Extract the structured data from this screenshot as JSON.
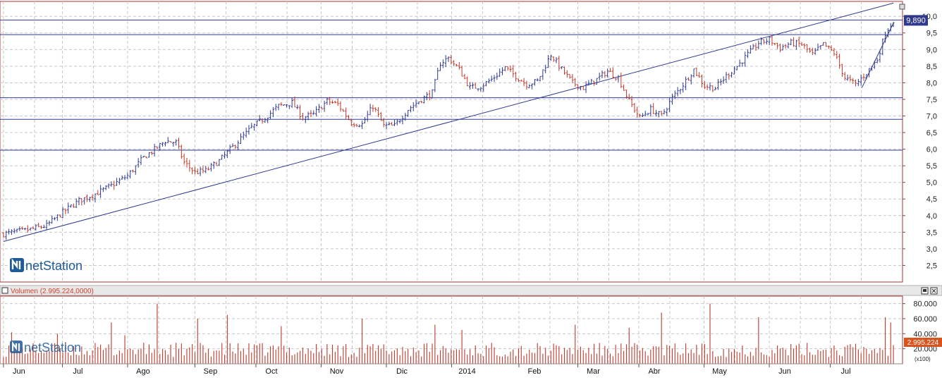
{
  "brand": {
    "name": "netStation"
  },
  "colors": {
    "up": "#2f3a8f",
    "down": "#c0392b",
    "volume": "#c0392b",
    "trendline": "#2f3a8f",
    "support": "#2f3a8f",
    "grid": "#c8c8c8",
    "last_price_bg": "#2f3a8f",
    "last_volume_bg": "#d9531e"
  },
  "chart_data": [
    {
      "type": "candlestick",
      "y_ticks": [
        "2,5",
        "3,0",
        "3,5",
        "4,0",
        "4,5",
        "5,0",
        "5,5",
        "6,0",
        "6,5",
        "7,0",
        "7,5",
        "8,0",
        "8,5",
        "9,0",
        "9,5",
        "10,0"
      ],
      "ylim": [
        2.0,
        10.45
      ],
      "last_value_label": "9,890",
      "last_value": 9.89,
      "support_levels": [
        9.89,
        9.45,
        7.55,
        6.9,
        5.97
      ],
      "trendlines": [
        {
          "from": [
            "2013-06-03",
            3.22
          ],
          "to": [
            "2014-07-31",
            10.4
          ]
        },
        {
          "from": [
            "2014-07-16",
            7.85
          ],
          "to": [
            "2014-07-31",
            9.8
          ]
        }
      ],
      "x_months": [
        "Jun",
        "Jul",
        "Ago",
        "Sep",
        "Oct",
        "Nov",
        "Dic",
        "2014",
        "Feb",
        "Mar",
        "Abr",
        "May",
        "Jun",
        "Jul"
      ],
      "price_path": [
        [
          0,
          3.45
        ],
        [
          8,
          3.55
        ],
        [
          16,
          3.7
        ],
        [
          22,
          4.1
        ],
        [
          28,
          4.45
        ],
        [
          34,
          4.65
        ],
        [
          40,
          4.9
        ],
        [
          46,
          5.2
        ],
        [
          52,
          5.75
        ],
        [
          57,
          6.05
        ],
        [
          60,
          6.25
        ],
        [
          64,
          6.2
        ],
        [
          67,
          5.6
        ],
        [
          71,
          5.3
        ],
        [
          75,
          5.35
        ],
        [
          80,
          5.65
        ],
        [
          86,
          6.15
        ],
        [
          92,
          6.65
        ],
        [
          97,
          6.95
        ],
        [
          102,
          7.3
        ],
        [
          107,
          7.4
        ],
        [
          111,
          6.95
        ],
        [
          115,
          7.05
        ],
        [
          120,
          7.45
        ],
        [
          124,
          7.35
        ],
        [
          129,
          6.8
        ],
        [
          133,
          6.75
        ],
        [
          137,
          7.3
        ],
        [
          141,
          6.7
        ],
        [
          145,
          6.7
        ],
        [
          150,
          7.2
        ],
        [
          155,
          7.5
        ],
        [
          159,
          7.7
        ],
        [
          162,
          8.6
        ],
        [
          165,
          8.75
        ],
        [
          169,
          8.4
        ],
        [
          173,
          7.85
        ],
        [
          177,
          7.9
        ],
        [
          181,
          8.1
        ],
        [
          186,
          8.45
        ],
        [
          190,
          8.2
        ],
        [
          194,
          7.95
        ],
        [
          198,
          8.05
        ],
        [
          203,
          8.85
        ],
        [
          207,
          8.4
        ],
        [
          211,
          8.0
        ],
        [
          215,
          7.85
        ],
        [
          220,
          8.1
        ],
        [
          224,
          8.35
        ],
        [
          228,
          8.15
        ],
        [
          232,
          7.45
        ],
        [
          236,
          6.95
        ],
        [
          240,
          7.2
        ],
        [
          244,
          7.0
        ],
        [
          248,
          7.55
        ],
        [
          252,
          7.95
        ],
        [
          256,
          8.4
        ],
        [
          260,
          7.9
        ],
        [
          264,
          7.85
        ],
        [
          268,
          8.2
        ],
        [
          272,
          8.5
        ],
        [
          276,
          8.85
        ],
        [
          280,
          9.2
        ],
        [
          284,
          9.3
        ],
        [
          288,
          9.05
        ],
        [
          292,
          9.2
        ],
        [
          296,
          9.15
        ],
        [
          300,
          8.85
        ],
        [
          304,
          9.15
        ],
        [
          308,
          8.9
        ],
        [
          312,
          8.15
        ],
        [
          316,
          7.95
        ],
        [
          320,
          8.3
        ],
        [
          324,
          8.7
        ],
        [
          327,
          9.5
        ],
        [
          330,
          9.89
        ]
      ],
      "n_bars": 331,
      "date_start": "2013-06-03",
      "date_end": "2014-07-31"
    },
    {
      "type": "bar",
      "title": "Volumen (2.995.224,0000)",
      "y_ticks": [
        "20.000",
        "40.000",
        "60.000",
        "80.000"
      ],
      "ylim": [
        0,
        90000
      ],
      "unit_label": "(x100)",
      "last_value_label": "2.995.224",
      "spikes": [
        [
          3,
          42000
        ],
        [
          20,
          40000
        ],
        [
          40,
          55000
        ],
        [
          45,
          38000
        ],
        [
          57,
          80000
        ],
        [
          72,
          60000
        ],
        [
          83,
          65000
        ],
        [
          103,
          50000
        ],
        [
          133,
          60000
        ],
        [
          160,
          52000
        ],
        [
          170,
          45000
        ],
        [
          212,
          52000
        ],
        [
          232,
          48000
        ],
        [
          244,
          68000
        ],
        [
          262,
          80000
        ],
        [
          280,
          62000
        ],
        [
          327,
          62000
        ],
        [
          329,
          55000
        ]
      ]
    }
  ]
}
